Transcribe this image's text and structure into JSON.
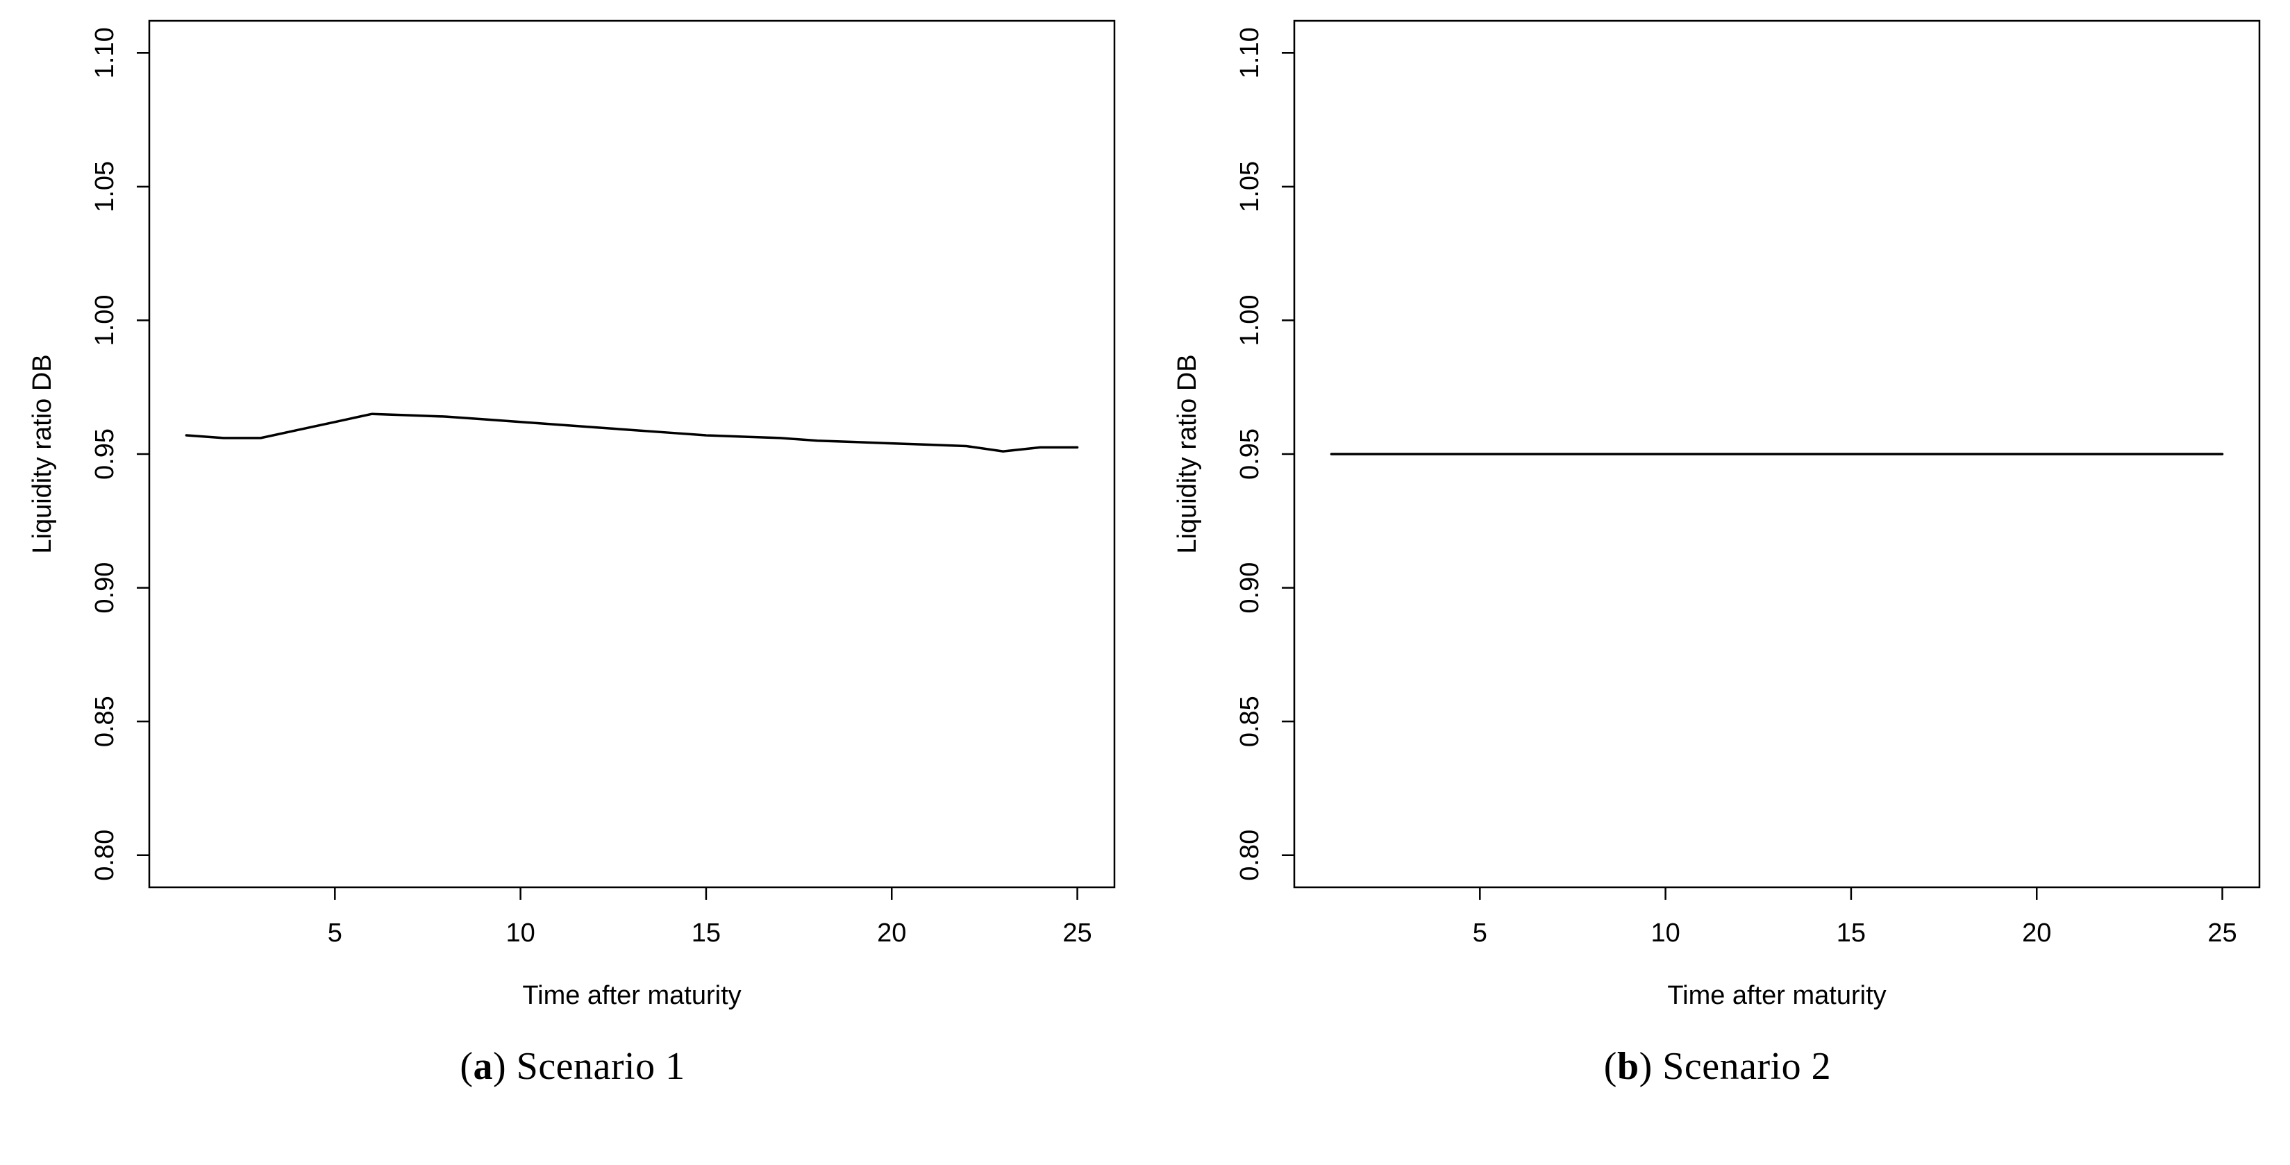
{
  "figure": {
    "background": "#ffffff",
    "line_color": "#000000",
    "axis_color": "#000000"
  },
  "captions": [
    {
      "pre": "(",
      "letter": "a",
      "post": ") Scenario 1"
    },
    {
      "pre": "(",
      "letter": "b",
      "post": ") Scenario 2"
    }
  ],
  "chart_data": [
    {
      "type": "line",
      "title": "",
      "xlabel": "Time after maturity",
      "ylabel": "Liquidity ratio DB",
      "xlim": [
        0,
        26
      ],
      "ylim": [
        0.788,
        1.112
      ],
      "xticks": [
        5,
        10,
        15,
        20,
        25
      ],
      "xtick_labels": [
        "5",
        "10",
        "15",
        "20",
        "25"
      ],
      "yticks": [
        0.8,
        0.85,
        0.9,
        0.95,
        1.0,
        1.05,
        1.1
      ],
      "ytick_labels": [
        "0.80",
        "0.85",
        "0.90",
        "0.95",
        "1.00",
        "1.05",
        "1.10"
      ],
      "grid": false,
      "legend": "none",
      "x": [
        1,
        2,
        3,
        4,
        5,
        6,
        7,
        8,
        9,
        10,
        11,
        12,
        13,
        14,
        15,
        16,
        17,
        18,
        19,
        20,
        21,
        22,
        23,
        24,
        25
      ],
      "y": [
        0.957,
        0.956,
        0.956,
        0.959,
        0.962,
        0.965,
        0.9645,
        0.964,
        0.963,
        0.962,
        0.961,
        0.96,
        0.959,
        0.958,
        0.957,
        0.9565,
        0.956,
        0.955,
        0.9545,
        0.954,
        0.9535,
        0.953,
        0.951,
        0.9525,
        0.9525
      ]
    },
    {
      "type": "line",
      "title": "",
      "xlabel": "Time after maturity",
      "ylabel": "Liquidity ratio DB",
      "xlim": [
        0,
        26
      ],
      "ylim": [
        0.788,
        1.112
      ],
      "xticks": [
        5,
        10,
        15,
        20,
        25
      ],
      "xtick_labels": [
        "5",
        "10",
        "15",
        "20",
        "25"
      ],
      "yticks": [
        0.8,
        0.85,
        0.9,
        0.95,
        1.0,
        1.05,
        1.1
      ],
      "ytick_labels": [
        "0.80",
        "0.85",
        "0.90",
        "0.95",
        "1.00",
        "1.05",
        "1.10"
      ],
      "grid": false,
      "legend": "none",
      "x": [
        1,
        2,
        3,
        4,
        5,
        6,
        7,
        8,
        9,
        10,
        11,
        12,
        13,
        14,
        15,
        16,
        17,
        18,
        19,
        20,
        21,
        22,
        23,
        24,
        25
      ],
      "y": [
        0.95,
        0.95,
        0.95,
        0.95,
        0.95,
        0.95,
        0.95,
        0.95,
        0.95,
        0.95,
        0.95,
        0.95,
        0.95,
        0.95,
        0.95,
        0.95,
        0.95,
        0.95,
        0.95,
        0.95,
        0.95,
        0.95,
        0.95,
        0.95,
        0.95
      ]
    }
  ]
}
